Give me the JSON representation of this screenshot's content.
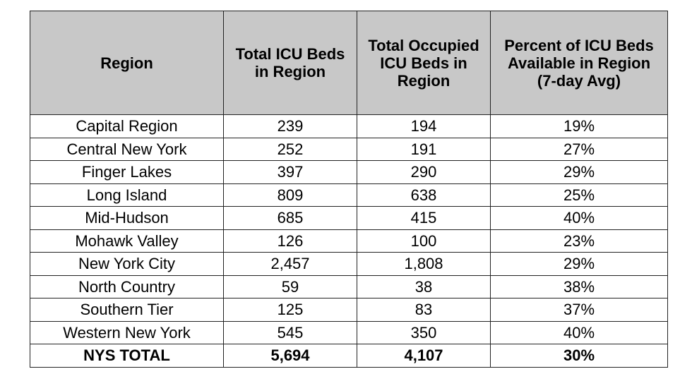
{
  "table": {
    "header": [
      "Region",
      "Total ICU Beds in Region",
      "Total Occupied ICU Beds in Region",
      "Percent of ICU Beds Available in Region (7-day Avg)"
    ],
    "rows": [
      [
        "Capital Region",
        "239",
        "194",
        "19%"
      ],
      [
        "Central New York",
        "252",
        "191",
        "27%"
      ],
      [
        "Finger Lakes",
        "397",
        "290",
        "29%"
      ],
      [
        "Long Island",
        "809",
        "638",
        "25%"
      ],
      [
        "Mid-Hudson",
        "685",
        "415",
        "40%"
      ],
      [
        "Mohawk Valley",
        "126",
        "100",
        "23%"
      ],
      [
        "New York City",
        "2,457",
        "1,808",
        "29%"
      ],
      [
        "North Country",
        "59",
        "38",
        "38%"
      ],
      [
        "Southern Tier",
        "125",
        "83",
        "37%"
      ],
      [
        "Western New York",
        "545",
        "350",
        "40%"
      ]
    ],
    "total": [
      "NYS TOTAL",
      "5,694",
      "4,107",
      "30%"
    ]
  }
}
